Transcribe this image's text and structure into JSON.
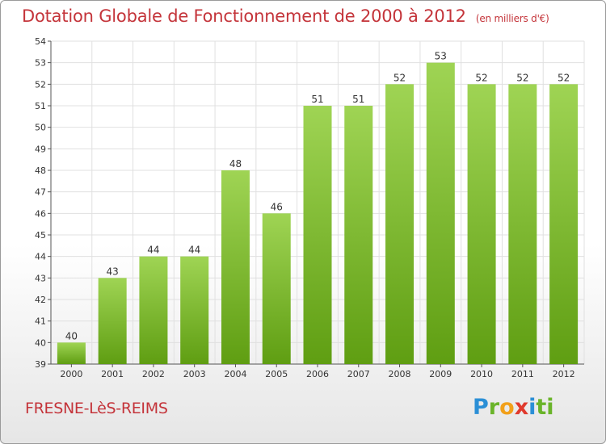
{
  "header": {
    "title": "Dotation Globale de Fonctionnement de 2000 à 2012",
    "subtitle": "(en milliers d'€)"
  },
  "footer": {
    "commune": "FRESNE-LèS-REIMS",
    "logo_letters": [
      "P",
      "r",
      "o",
      "x",
      "i",
      "t",
      "i"
    ]
  },
  "colors": {
    "title": "#c4343a",
    "bar_top": "#9fd454",
    "bar_bottom": "#5f9e12",
    "grid": "#e0e0e0"
  },
  "chart_data": {
    "type": "bar",
    "title": "Dotation Globale de Fonctionnement de 2000 à 2012",
    "subtitle": "(en milliers d'€)",
    "xlabel": "",
    "ylabel": "",
    "categories": [
      "2000",
      "2001",
      "2002",
      "2003",
      "2004",
      "2005",
      "2006",
      "2007",
      "2008",
      "2009",
      "2010",
      "2011",
      "2012"
    ],
    "values": [
      40,
      43,
      44,
      44,
      48,
      46,
      51,
      51,
      52,
      53,
      52,
      52,
      52
    ],
    "ylim": [
      39,
      54
    ],
    "yticks": [
      39,
      40,
      41,
      42,
      43,
      44,
      45,
      46,
      47,
      48,
      49,
      50,
      51,
      52,
      53,
      54
    ],
    "grid": true,
    "legend": "none"
  }
}
